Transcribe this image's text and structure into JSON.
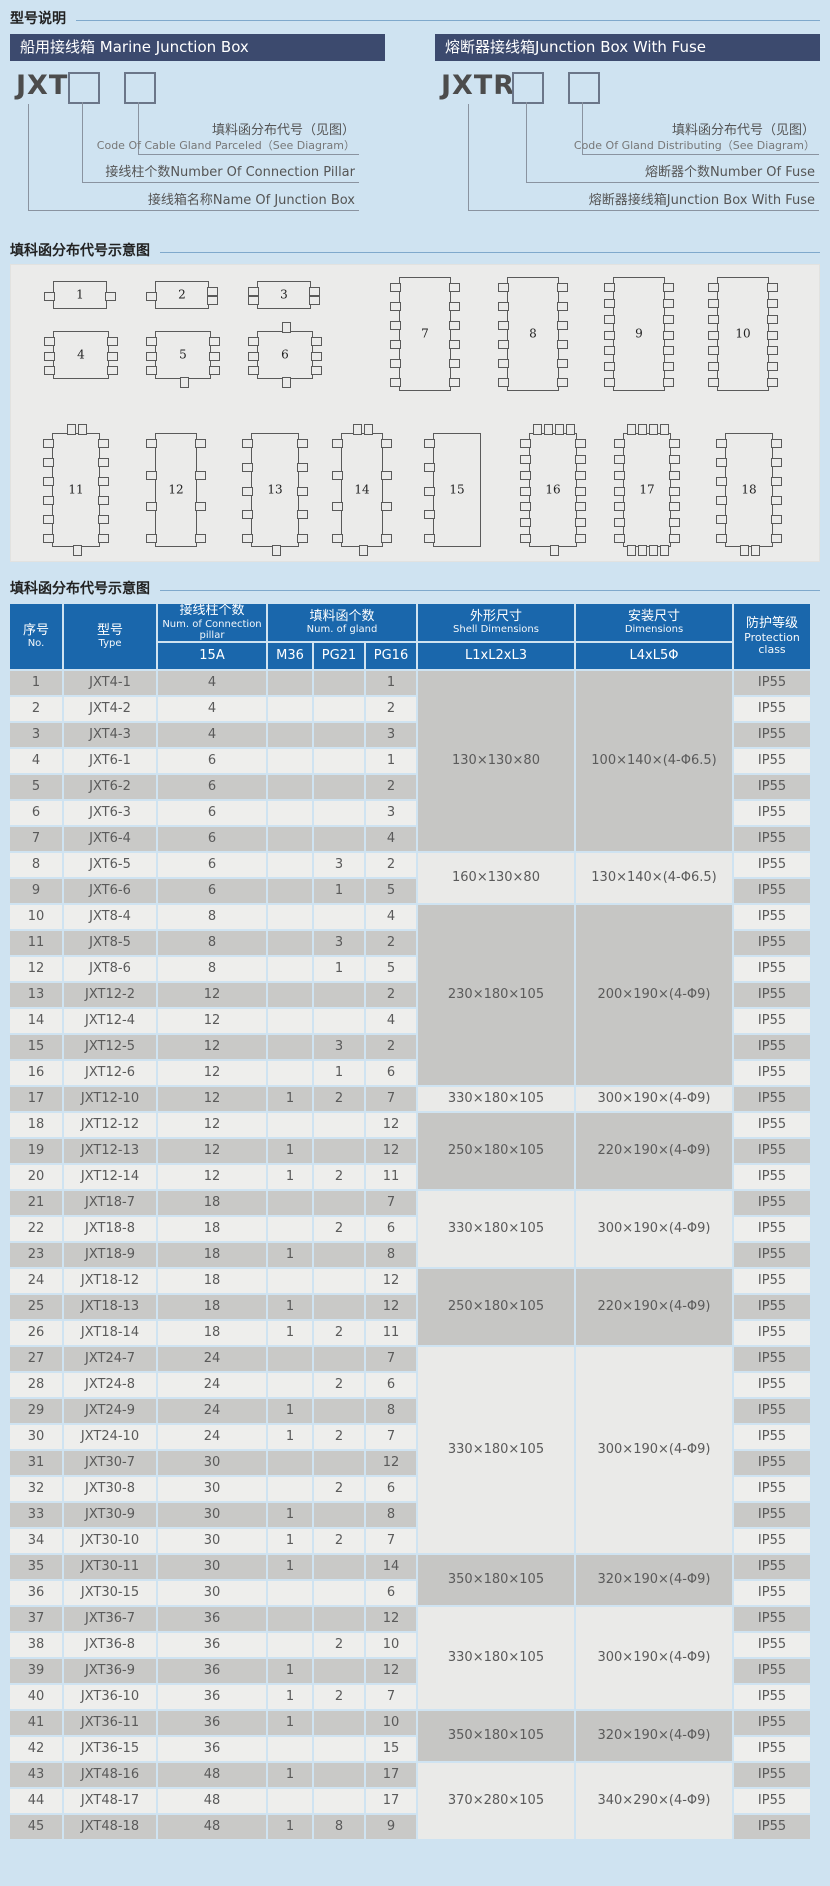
{
  "sections": {
    "model_title": "型号说明",
    "gland_diagram_title": "填科函分布代号示意图",
    "table_title": "填科函分布代号示意图"
  },
  "model_blocks": [
    {
      "header": "船用接线箱 Marine Junction Box",
      "code": "JXT",
      "callouts": [
        {
          "zh": "填料函分布代号（见图）",
          "en": "Code Of Cable Gland Parceled（See Diagram）"
        },
        {
          "text": "接线柱个数Number Of Connection Pillar"
        },
        {
          "text": "接线箱名称Name Of Junction Box"
        }
      ]
    },
    {
      "header": "熔断器接线箱Junction Box With Fuse",
      "code": "JXTR",
      "callouts": [
        {
          "zh": "填料函分布代号（见图）",
          "en": "Code Of Gland Distributing（See Diagram）"
        },
        {
          "text": "熔断器个数Number Of Fuse"
        },
        {
          "text": "熔断器接线箱Junction Box With Fuse"
        }
      ]
    }
  ],
  "gland_diagrams": [
    {
      "num": "1",
      "tabs": {
        "l": 1,
        "r": 1,
        "t": 0,
        "b": 0
      }
    },
    {
      "num": "2",
      "tabs": {
        "l": 1,
        "r": 2,
        "t": 0,
        "b": 0
      }
    },
    {
      "num": "3",
      "tabs": {
        "l": 2,
        "r": 2,
        "t": 0,
        "b": 0
      }
    },
    {
      "num": "4",
      "tabs": {
        "l": 3,
        "r": 3,
        "t": 0,
        "b": 0
      }
    },
    {
      "num": "5",
      "tabs": {
        "l": 3,
        "r": 3,
        "t": 0,
        "b": 1
      }
    },
    {
      "num": "6",
      "tabs": {
        "l": 3,
        "r": 3,
        "t": 1,
        "b": 1
      }
    },
    {
      "num": "7",
      "tabs": {
        "l": 6,
        "r": 6,
        "t": 0,
        "b": 0
      }
    },
    {
      "num": "8",
      "tabs": {
        "l": 6,
        "r": 6,
        "t": 0,
        "b": 0
      }
    },
    {
      "num": "9",
      "tabs": {
        "l": 7,
        "r": 7,
        "t": 0,
        "b": 0
      }
    },
    {
      "num": "10",
      "tabs": {
        "l": 7,
        "r": 7,
        "t": 0,
        "b": 0
      }
    },
    {
      "num": "11",
      "tabs": {
        "l": 6,
        "r": 6,
        "t": 2,
        "b": 1
      }
    },
    {
      "num": "12",
      "tabs": {
        "l": 4,
        "r": 4,
        "t": 0,
        "b": 0
      }
    },
    {
      "num": "13",
      "tabs": {
        "l": 5,
        "r": 5,
        "t": 0,
        "b": 1
      }
    },
    {
      "num": "14",
      "tabs": {
        "l": 4,
        "r": 4,
        "t": 2,
        "b": 1
      }
    },
    {
      "num": "15",
      "tabs": {
        "l": 5,
        "r": 0,
        "t": 0,
        "b": 0
      }
    },
    {
      "num": "16",
      "tabs": {
        "l": 7,
        "r": 7,
        "t": 4,
        "b": 1
      }
    },
    {
      "num": "17",
      "tabs": {
        "l": 7,
        "r": 7,
        "t": 4,
        "b": 4
      }
    },
    {
      "num": "18",
      "tabs": {
        "l": 6,
        "r": 6,
        "t": 0,
        "b": 2
      }
    }
  ],
  "table": {
    "headers": {
      "no": {
        "zh": "序号",
        "en": "No."
      },
      "type": {
        "zh": "型号",
        "en": "Type"
      },
      "pillar": {
        "zh": "接线柱个数",
        "en": "Num. of Connection pillar",
        "sub": "15A"
      },
      "gland": {
        "zh": "填料函个数",
        "en": "Num. of gland",
        "subs": [
          "M36",
          "PG21",
          "PG16"
        ]
      },
      "shell": {
        "zh": "外形尺寸",
        "en": "Shell Dimensions",
        "sub": "L1xL2xL3"
      },
      "mount": {
        "zh": "安装尺寸",
        "en": "Dimensions",
        "sub": "L4xL5Φ"
      },
      "protection": {
        "zh": "防护等级",
        "en": "Protection class"
      }
    },
    "protection_value": "IP55",
    "rows": [
      {
        "no": "1",
        "type": "JXT4-1",
        "a15": "4",
        "m36": "",
        "pg21": "",
        "pg16": "1"
      },
      {
        "no": "2",
        "type": "JXT4-2",
        "a15": "4",
        "m36": "",
        "pg21": "",
        "pg16": "2"
      },
      {
        "no": "3",
        "type": "JXT4-3",
        "a15": "4",
        "m36": "",
        "pg21": "",
        "pg16": "3"
      },
      {
        "no": "4",
        "type": "JXT6-1",
        "a15": "6",
        "m36": "",
        "pg21": "",
        "pg16": "1"
      },
      {
        "no": "5",
        "type": "JXT6-2",
        "a15": "6",
        "m36": "",
        "pg21": "",
        "pg16": "2"
      },
      {
        "no": "6",
        "type": "JXT6-3",
        "a15": "6",
        "m36": "",
        "pg21": "",
        "pg16": "3"
      },
      {
        "no": "7",
        "type": "JXT6-4",
        "a15": "6",
        "m36": "",
        "pg21": "",
        "pg16": "4"
      },
      {
        "no": "8",
        "type": "JXT6-5",
        "a15": "6",
        "m36": "",
        "pg21": "3",
        "pg16": "2"
      },
      {
        "no": "9",
        "type": "JXT6-6",
        "a15": "6",
        "m36": "",
        "pg21": "1",
        "pg16": "5"
      },
      {
        "no": "10",
        "type": "JXT8-4",
        "a15": "8",
        "m36": "",
        "pg21": "",
        "pg16": "4"
      },
      {
        "no": "11",
        "type": "JXT8-5",
        "a15": "8",
        "m36": "",
        "pg21": "3",
        "pg16": "2"
      },
      {
        "no": "12",
        "type": "JXT8-6",
        "a15": "8",
        "m36": "",
        "pg21": "1",
        "pg16": "5"
      },
      {
        "no": "13",
        "type": "JXT12-2",
        "a15": "12",
        "m36": "",
        "pg21": "",
        "pg16": "2"
      },
      {
        "no": "14",
        "type": "JXT12-4",
        "a15": "12",
        "m36": "",
        "pg21": "",
        "pg16": "4"
      },
      {
        "no": "15",
        "type": "JXT12-5",
        "a15": "12",
        "m36": "",
        "pg21": "3",
        "pg16": "2"
      },
      {
        "no": "16",
        "type": "JXT12-6",
        "a15": "12",
        "m36": "",
        "pg21": "1",
        "pg16": "6"
      },
      {
        "no": "17",
        "type": "JXT12-10",
        "a15": "12",
        "m36": "1",
        "pg21": "2",
        "pg16": "7"
      },
      {
        "no": "18",
        "type": "JXT12-12",
        "a15": "12",
        "m36": "",
        "pg21": "",
        "pg16": "12"
      },
      {
        "no": "19",
        "type": "JXT12-13",
        "a15": "12",
        "m36": "1",
        "pg21": "",
        "pg16": "12"
      },
      {
        "no": "20",
        "type": "JXT12-14",
        "a15": "12",
        "m36": "1",
        "pg21": "2",
        "pg16": "11"
      },
      {
        "no": "21",
        "type": "JXT18-7",
        "a15": "18",
        "m36": "",
        "pg21": "",
        "pg16": "7"
      },
      {
        "no": "22",
        "type": "JXT18-8",
        "a15": "18",
        "m36": "",
        "pg21": "2",
        "pg16": "6"
      },
      {
        "no": "23",
        "type": "JXT18-9",
        "a15": "18",
        "m36": "1",
        "pg21": "",
        "pg16": "8"
      },
      {
        "no": "24",
        "type": "JXT18-12",
        "a15": "18",
        "m36": "",
        "pg21": "",
        "pg16": "12"
      },
      {
        "no": "25",
        "type": "JXT18-13",
        "a15": "18",
        "m36": "1",
        "pg21": "",
        "pg16": "12"
      },
      {
        "no": "26",
        "type": "JXT18-14",
        "a15": "18",
        "m36": "1",
        "pg21": "2",
        "pg16": "11"
      },
      {
        "no": "27",
        "type": "JXT24-7",
        "a15": "24",
        "m36": "",
        "pg21": "",
        "pg16": "7"
      },
      {
        "no": "28",
        "type": "JXT24-8",
        "a15": "24",
        "m36": "",
        "pg21": "2",
        "pg16": "6"
      },
      {
        "no": "29",
        "type": "JXT24-9",
        "a15": "24",
        "m36": "1",
        "pg21": "",
        "pg16": "8"
      },
      {
        "no": "30",
        "type": "JXT24-10",
        "a15": "24",
        "m36": "1",
        "pg21": "2",
        "pg16": "7"
      },
      {
        "no": "31",
        "type": "JXT30-7",
        "a15": "30",
        "m36": "",
        "pg21": "",
        "pg16": "12"
      },
      {
        "no": "32",
        "type": "JXT30-8",
        "a15": "30",
        "m36": "",
        "pg21": "2",
        "pg16": "6"
      },
      {
        "no": "33",
        "type": "JXT30-9",
        "a15": "30",
        "m36": "1",
        "pg21": "",
        "pg16": "8"
      },
      {
        "no": "34",
        "type": "JXT30-10",
        "a15": "30",
        "m36": "1",
        "pg21": "2",
        "pg16": "7"
      },
      {
        "no": "35",
        "type": "JXT30-11",
        "a15": "30",
        "m36": "1",
        "pg21": "",
        "pg16": "14"
      },
      {
        "no": "36",
        "type": "JXT30-15",
        "a15": "30",
        "m36": "",
        "pg21": "",
        "pg16": "6"
      },
      {
        "no": "37",
        "type": "JXT36-7",
        "a15": "36",
        "m36": "",
        "pg21": "",
        "pg16": "12"
      },
      {
        "no": "38",
        "type": "JXT36-8",
        "a15": "36",
        "m36": "",
        "pg21": "2",
        "pg16": "10"
      },
      {
        "no": "39",
        "type": "JXT36-9",
        "a15": "36",
        "m36": "1",
        "pg21": "",
        "pg16": "12"
      },
      {
        "no": "40",
        "type": "JXT36-10",
        "a15": "36",
        "m36": "1",
        "pg21": "2",
        "pg16": "7"
      },
      {
        "no": "41",
        "type": "JXT36-11",
        "a15": "36",
        "m36": "1",
        "pg21": "",
        "pg16": "10"
      },
      {
        "no": "42",
        "type": "JXT36-15",
        "a15": "36",
        "m36": "",
        "pg21": "",
        "pg16": "15"
      },
      {
        "no": "43",
        "type": "JXT48-16",
        "a15": "48",
        "m36": "1",
        "pg21": "",
        "pg16": "17"
      },
      {
        "no": "44",
        "type": "JXT48-17",
        "a15": "48",
        "m36": "",
        "pg21": "",
        "pg16": "17"
      },
      {
        "no": "45",
        "type": "JXT48-18",
        "a15": "48",
        "m36": "1",
        "pg21": "8",
        "pg16": "9"
      }
    ],
    "shell_groups": [
      {
        "start": 1,
        "end": 7,
        "shell": "130×130×80",
        "mount": "100×140×(4-Φ6.5)"
      },
      {
        "start": 8,
        "end": 9,
        "shell": "160×130×80",
        "mount": "130×140×(4-Φ6.5)"
      },
      {
        "start": 10,
        "end": 16,
        "shell": "230×180×105",
        "mount": "200×190×(4-Φ9)"
      },
      {
        "start": 17,
        "end": 17,
        "shell": "330×180×105",
        "mount": "300×190×(4-Φ9)"
      },
      {
        "start": 18,
        "end": 20,
        "shell": "250×180×105",
        "mount": "220×190×(4-Φ9)"
      },
      {
        "start": 21,
        "end": 23,
        "shell": "330×180×105",
        "mount": "300×190×(4-Φ9)"
      },
      {
        "start": 24,
        "end": 26,
        "shell": "250×180×105",
        "mount": "220×190×(4-Φ9)"
      },
      {
        "start": 27,
        "end": 34,
        "shell": "330×180×105",
        "mount": "300×190×(4-Φ9)"
      },
      {
        "start": 35,
        "end": 36,
        "shell": "350×180×105",
        "mount": "320×190×(4-Φ9)"
      },
      {
        "start": 37,
        "end": 40,
        "shell": "330×180×105",
        "mount": "300×190×(4-Φ9)"
      },
      {
        "start": 41,
        "end": 42,
        "shell": "350×180×105",
        "mount": "320×190×(4-Φ9)"
      },
      {
        "start": 43,
        "end": 45,
        "shell": "370×280×105",
        "mount": "340×290×(4-Φ9)"
      }
    ]
  }
}
